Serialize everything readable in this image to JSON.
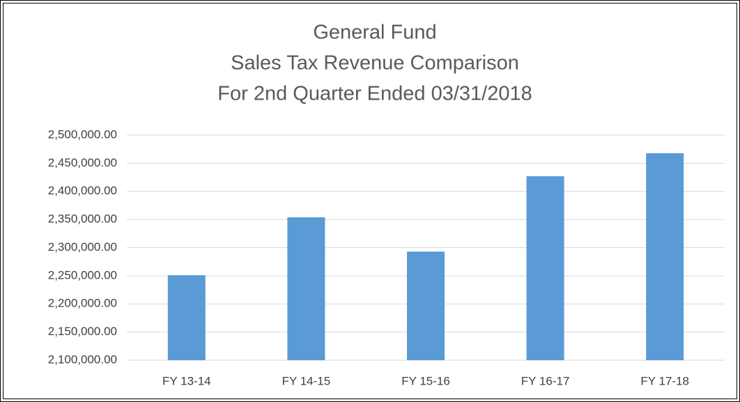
{
  "chart_data": {
    "type": "bar",
    "title": [
      "General Fund",
      "Sales Tax Revenue Comparison",
      "For 2nd Quarter Ended 03/31/2018"
    ],
    "categories": [
      "FY 13-14",
      "FY 14-15",
      "FY 15-16",
      "FY 16-17",
      "FY 17-18"
    ],
    "values": [
      2251000,
      2354000,
      2293000,
      2427000,
      2468000
    ],
    "color": "#5b9bd5",
    "ylim": [
      2100000,
      2500000
    ],
    "yticks": [
      {
        "value": 2100000,
        "label": "2,100,000.00"
      },
      {
        "value": 2150000,
        "label": "2,150,000.00"
      },
      {
        "value": 2200000,
        "label": "2,200,000.00"
      },
      {
        "value": 2250000,
        "label": "2,250,000.00"
      },
      {
        "value": 2300000,
        "label": "2,300,000.00"
      },
      {
        "value": 2350000,
        "label": "2,350,000.00"
      },
      {
        "value": 2400000,
        "label": "2,400,000.00"
      },
      {
        "value": 2450000,
        "label": "2,450,000.00"
      },
      {
        "value": 2500000,
        "label": "2,500,000.00"
      }
    ],
    "grid": true
  }
}
